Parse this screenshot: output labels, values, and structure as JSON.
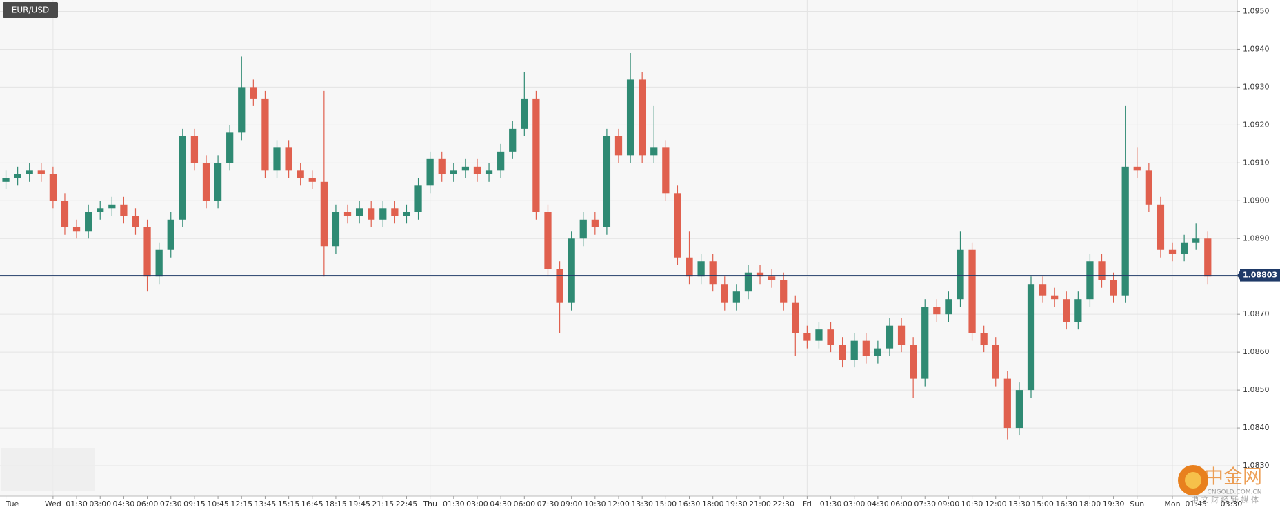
{
  "chart_data": {
    "type": "candlestick",
    "title": "EUR/USD",
    "categories": [
      "Tue",
      null,
      null,
      null,
      "Wed",
      null,
      "01:30",
      null,
      "03:00",
      null,
      "04:30",
      null,
      "06:00",
      null,
      "07:30",
      null,
      "09:15",
      null,
      "10:45",
      null,
      "12:15",
      null,
      "13:45",
      null,
      "15:15",
      null,
      "16:45",
      null,
      "18:15",
      null,
      "19:45",
      null,
      "21:15",
      null,
      "22:45",
      null,
      "Thu",
      null,
      "01:30",
      null,
      "03:00",
      null,
      "04:30",
      null,
      "06:00",
      null,
      "07:30",
      null,
      "09:00",
      null,
      "10:30",
      null,
      "12:00",
      null,
      "13:30",
      null,
      "15:00",
      null,
      "16:30",
      null,
      "18:00",
      null,
      "19:30",
      null,
      "21:00",
      null,
      "22:30",
      null,
      "Fri",
      null,
      "01:30",
      null,
      "03:00",
      null,
      "04:30",
      null,
      "06:00",
      null,
      "07:30",
      null,
      "09:00",
      null,
      "10:30",
      null,
      "12:00",
      null,
      "13:30",
      null,
      "15:00",
      null,
      "16:30",
      null,
      "18:00",
      null,
      "19:30",
      null,
      "Sun",
      null,
      null,
      "Mon",
      null,
      "01:45",
      null,
      null,
      "03:30"
    ],
    "open": [
      1.0905,
      1.0906,
      1.0907,
      1.0908,
      1.0907,
      1.09,
      1.0893,
      1.0892,
      1.0897,
      1.0898,
      1.0899,
      1.0896,
      1.0893,
      1.088,
      1.0887,
      1.0895,
      1.0917,
      1.091,
      1.09,
      1.091,
      1.0918,
      1.093,
      1.0927,
      1.0908,
      1.0914,
      1.0908,
      1.0906,
      1.0905,
      1.0888,
      1.0897,
      1.0896,
      1.0898,
      1.0895,
      1.0898,
      1.0896,
      1.0897,
      1.0904,
      1.0911,
      1.0907,
      1.0908,
      1.0909,
      1.0907,
      1.0908,
      1.0913,
      1.0919,
      1.0927,
      1.0897,
      1.0882,
      1.0873,
      1.089,
      1.0895,
      1.0893,
      1.0917,
      1.0912,
      1.0932,
      1.0912,
      1.0914,
      1.0902,
      1.0885,
      1.088,
      1.0884,
      1.0878,
      1.0873,
      1.0876,
      1.0881,
      1.088,
      1.0879,
      1.0873,
      1.0865,
      1.0863,
      1.0866,
      1.0862,
      1.0858,
      1.0863,
      1.0859,
      1.0861,
      1.0867,
      1.0862,
      1.0853,
      1.0872,
      1.087,
      1.0874,
      1.0887,
      1.0865,
      1.0862,
      1.0853,
      1.084,
      1.085,
      1.0878,
      1.0875,
      1.0874,
      1.0868,
      1.0874,
      1.0884,
      1.0879,
      1.0875,
      1.0909,
      1.0908,
      1.0899,
      1.0887,
      1.0886,
      1.0889,
      1.089,
      null,
      null
    ],
    "high": [
      1.0908,
      1.0909,
      1.091,
      1.091,
      1.0909,
      1.0902,
      1.0895,
      1.0899,
      1.09,
      1.0901,
      1.0901,
      1.0898,
      1.0895,
      1.0889,
      1.0897,
      1.0919,
      1.0919,
      1.0912,
      1.0912,
      1.092,
      1.0938,
      1.0932,
      1.0929,
      1.0916,
      1.0916,
      1.091,
      1.0908,
      1.0929,
      1.0899,
      1.0899,
      1.09,
      1.09,
      1.09,
      1.09,
      1.0899,
      1.0906,
      1.0913,
      1.0913,
      1.091,
      1.0911,
      1.0911,
      1.091,
      1.0915,
      1.0921,
      1.0934,
      1.0929,
      1.0899,
      1.0884,
      1.0892,
      1.0897,
      1.0897,
      1.0919,
      1.0919,
      1.0939,
      1.0934,
      1.0925,
      1.0916,
      1.0904,
      1.0892,
      1.0886,
      1.0886,
      1.088,
      1.0878,
      1.0883,
      1.0883,
      1.0882,
      1.0881,
      1.0875,
      1.0867,
      1.0868,
      1.0868,
      1.0864,
      1.0865,
      1.0865,
      1.0863,
      1.0869,
      1.0869,
      1.0864,
      1.0874,
      1.0874,
      1.0876,
      1.0892,
      1.0889,
      1.0867,
      1.0864,
      1.0855,
      1.0852,
      1.088,
      1.088,
      1.0877,
      1.0876,
      1.0876,
      1.0886,
      1.0886,
      1.0881,
      1.0925,
      1.0914,
      1.091,
      1.0901,
      1.0889,
      1.0891,
      1.0894,
      1.0892,
      null,
      null
    ],
    "low": [
      1.0903,
      1.0904,
      1.0905,
      1.0905,
      1.0898,
      1.0891,
      1.089,
      1.089,
      1.0895,
      1.0896,
      1.0894,
      1.0891,
      1.0876,
      1.0878,
      1.0885,
      1.0893,
      1.0908,
      1.0898,
      1.0898,
      1.0908,
      1.0916,
      1.0925,
      1.0906,
      1.0906,
      1.0906,
      1.0904,
      1.0903,
      1.088,
      1.0886,
      1.0894,
      1.0894,
      1.0893,
      1.0893,
      1.0894,
      1.0894,
      1.0895,
      1.0902,
      1.0905,
      1.0905,
      1.0906,
      1.0905,
      1.0905,
      1.0906,
      1.0911,
      1.0917,
      1.0895,
      1.088,
      1.0865,
      1.0871,
      1.0888,
      1.0891,
      1.0891,
      1.091,
      1.091,
      1.091,
      1.091,
      1.09,
      1.0883,
      1.0878,
      1.0878,
      1.0876,
      1.0871,
      1.0871,
      1.0874,
      1.0878,
      1.0877,
      1.0871,
      1.0859,
      1.0861,
      1.0861,
      1.086,
      1.0856,
      1.0856,
      1.0857,
      1.0857,
      1.0859,
      1.086,
      1.0848,
      1.0851,
      1.0868,
      1.0868,
      1.0872,
      1.0863,
      1.086,
      1.0851,
      1.0837,
      1.0838,
      1.0848,
      1.0873,
      1.0872,
      1.0866,
      1.0866,
      1.0872,
      1.0877,
      1.0873,
      1.0873,
      1.0906,
      1.0897,
      1.0885,
      1.0884,
      1.0884,
      1.0887,
      1.0878,
      null,
      null
    ],
    "close": [
      1.0906,
      1.0907,
      1.0908,
      1.0907,
      1.09,
      1.0893,
      1.0892,
      1.0897,
      1.0898,
      1.0899,
      1.0896,
      1.0893,
      1.088,
      1.0887,
      1.0895,
      1.0917,
      1.091,
      1.09,
      1.091,
      1.0918,
      1.093,
      1.0927,
      1.0908,
      1.0914,
      1.0908,
      1.0906,
      1.0905,
      1.0888,
      1.0897,
      1.0896,
      1.0898,
      1.0895,
      1.0898,
      1.0896,
      1.0897,
      1.0904,
      1.0911,
      1.0907,
      1.0908,
      1.0909,
      1.0907,
      1.0908,
      1.0913,
      1.0919,
      1.0927,
      1.0897,
      1.0882,
      1.0873,
      1.089,
      1.0895,
      1.0893,
      1.0917,
      1.0912,
      1.0932,
      1.0912,
      1.0914,
      1.0902,
      1.0885,
      1.088,
      1.0884,
      1.0878,
      1.0873,
      1.0876,
      1.0881,
      1.088,
      1.0879,
      1.0873,
      1.0865,
      1.0863,
      1.0866,
      1.0862,
      1.0858,
      1.0863,
      1.0859,
      1.0861,
      1.0867,
      1.0862,
      1.0853,
      1.0872,
      1.087,
      1.0874,
      1.0887,
      1.0865,
      1.0862,
      1.0853,
      1.084,
      1.085,
      1.0878,
      1.0875,
      1.0874,
      1.0868,
      1.0874,
      1.0884,
      1.0879,
      1.0875,
      1.0909,
      1.0908,
      1.0899,
      1.0887,
      1.0886,
      1.0889,
      1.089,
      1.088,
      null,
      null
    ],
    "up_color": "#2f8a73",
    "down_color": "#e0604e",
    "last_price": 1.08803,
    "last_price_color": "#1f3a68",
    "ylim": [
      1.0822,
      1.0953
    ],
    "yticks": [
      {
        "value": 1.083,
        "label": "1.0830"
      },
      {
        "value": 1.084,
        "label": "1.0840"
      },
      {
        "value": 1.085,
        "label": "1.0850"
      },
      {
        "value": 1.086,
        "label": "1.0860"
      },
      {
        "value": 1.087,
        "label": "1.0870"
      },
      {
        "value": 1.088,
        "label": "1.0880"
      },
      {
        "value": 1.089,
        "label": "1.0890"
      },
      {
        "value": 1.09,
        "label": "1.0900"
      },
      {
        "value": 1.091,
        "label": "1.0910"
      },
      {
        "value": 1.092,
        "label": "1.0920"
      },
      {
        "value": 1.093,
        "label": "1.0930"
      },
      {
        "value": 1.094,
        "label": "1.0940"
      },
      {
        "value": 1.095,
        "label": "1.0950"
      }
    ],
    "grid": true,
    "watermark": {
      "brand": "中金网",
      "site": "CNGOLD.COM.CN",
      "slogan": "中 文 财 经 新 媒 体"
    }
  }
}
